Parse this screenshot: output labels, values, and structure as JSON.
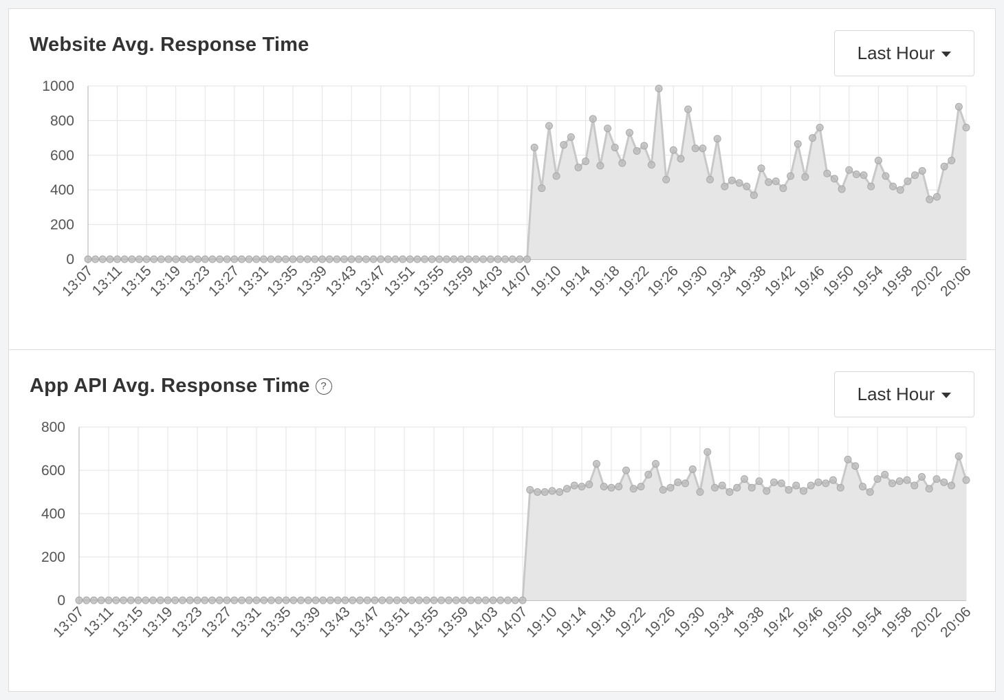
{
  "panels": [
    {
      "title": "Website Avg. Response Time",
      "help": false,
      "range_label": "Last Hour",
      "chart_data": {
        "type": "area",
        "x_tick_labels": [
          "13:07",
          "13:11",
          "13:15",
          "13:19",
          "13:23",
          "13:27",
          "13:31",
          "13:35",
          "13:39",
          "13:43",
          "13:47",
          "13:51",
          "13:55",
          "13:59",
          "14:03",
          "14:07",
          "19:10",
          "19:14",
          "19:18",
          "19:22",
          "19:26",
          "19:30",
          "19:34",
          "19:38",
          "19:42",
          "19:46",
          "19:50",
          "19:54",
          "19:58",
          "20:02",
          "20:06"
        ],
        "y_ticks": [
          0,
          200,
          400,
          600,
          800,
          1000
        ],
        "ylim": [
          0,
          1000
        ],
        "zero_points": 61,
        "values": [
          645,
          410,
          770,
          480,
          660,
          705,
          530,
          565,
          810,
          540,
          755,
          645,
          555,
          730,
          625,
          655,
          545,
          985,
          460,
          630,
          580,
          865,
          640,
          640,
          460,
          695,
          420,
          455,
          440,
          420,
          370,
          525,
          445,
          450,
          410,
          480,
          665,
          475,
          700,
          760,
          495,
          465,
          405,
          515,
          490,
          485,
          420,
          570,
          480,
          420,
          400,
          450,
          485,
          510,
          345,
          360,
          535,
          570,
          880,
          760
        ],
        "grid": true,
        "line_color": "#c8c8c8",
        "fill_color": "#e6e6e6",
        "point_color": "#bcbcbc"
      }
    },
    {
      "title": "App API Avg. Response Time",
      "help": true,
      "help_glyph": "?",
      "range_label": "Last Hour",
      "chart_data": {
        "type": "area",
        "x_tick_labels": [
          "13:07",
          "13:11",
          "13:15",
          "13:19",
          "13:23",
          "13:27",
          "13:31",
          "13:35",
          "13:39",
          "13:43",
          "13:47",
          "13:51",
          "13:55",
          "13:59",
          "14:03",
          "14:07",
          "19:10",
          "19:14",
          "19:18",
          "19:22",
          "19:26",
          "19:30",
          "19:34",
          "19:38",
          "19:42",
          "19:46",
          "19:50",
          "19:54",
          "19:58",
          "20:02",
          "20:06"
        ],
        "y_ticks": [
          0,
          200,
          400,
          600,
          800
        ],
        "ylim": [
          0,
          800
        ],
        "zero_points": 61,
        "values": [
          510,
          500,
          500,
          505,
          500,
          515,
          530,
          525,
          535,
          630,
          525,
          520,
          525,
          600,
          515,
          525,
          580,
          630,
          510,
          520,
          545,
          540,
          605,
          500,
          685,
          520,
          530,
          500,
          520,
          560,
          520,
          550,
          505,
          545,
          540,
          510,
          530,
          505,
          530,
          545,
          540,
          555,
          520,
          650,
          620,
          525,
          500,
          560,
          580,
          540,
          550,
          555,
          530,
          570,
          515,
          560,
          545,
          530,
          665,
          555
        ],
        "grid": true,
        "line_color": "#c8c8c8",
        "fill_color": "#e6e6e6",
        "point_color": "#bcbcbc"
      }
    }
  ]
}
